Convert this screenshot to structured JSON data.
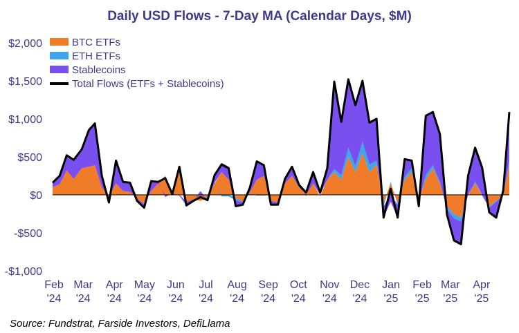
{
  "chart_data": {
    "type": "area",
    "title": "Daily USD Flows - 7-Day MA (Calendar Days, $M)",
    "source": "Source: Fundstrat, Farside Investors, DefiLlama",
    "ylim": [
      -1000,
      2000
    ],
    "y_ticks": [
      {
        "value": 2000,
        "label": "$2,000"
      },
      {
        "value": 1500,
        "label": "$1,500"
      },
      {
        "value": 1000,
        "label": "$1,000"
      },
      {
        "value": 500,
        "label": "$500"
      },
      {
        "value": 0,
        "label": "$0"
      },
      {
        "value": -500,
        "label": "-$500"
      },
      {
        "value": -1000,
        "label": "-$1,000"
      }
    ],
    "x_range": [
      "2024-02-01",
      "2025-04-30"
    ],
    "x_ticks": [
      {
        "date": "2024-02-01",
        "line1": "Feb",
        "line2": "'24"
      },
      {
        "date": "2024-03-01",
        "line1": "Mar",
        "line2": "'24"
      },
      {
        "date": "2024-04-01",
        "line1": "Apr",
        "line2": "'24"
      },
      {
        "date": "2024-05-01",
        "line1": "May",
        "line2": "'24"
      },
      {
        "date": "2024-06-01",
        "line1": "Jun",
        "line2": "'24"
      },
      {
        "date": "2024-07-01",
        "line1": "Jul",
        "line2": "'24"
      },
      {
        "date": "2024-08-01",
        "line1": "Aug",
        "line2": "'24"
      },
      {
        "date": "2024-09-01",
        "line1": "Sep",
        "line2": "'24"
      },
      {
        "date": "2024-10-01",
        "line1": "Oct",
        "line2": "'24"
      },
      {
        "date": "2024-11-01",
        "line1": "Nov",
        "line2": "'24"
      },
      {
        "date": "2024-12-01",
        "line1": "Dec",
        "line2": "'24"
      },
      {
        "date": "2025-01-01",
        "line1": "Jan",
        "line2": "'25"
      },
      {
        "date": "2025-02-01",
        "line1": "Feb",
        "line2": "'25"
      },
      {
        "date": "2025-03-01",
        "line1": "Mar",
        "line2": "'25"
      },
      {
        "date": "2025-04-01",
        "line1": "Apr",
        "line2": "'25"
      }
    ],
    "legend_position": "top-left",
    "grid": false,
    "x": [
      "2024-02-01",
      "2024-02-08",
      "2024-02-15",
      "2024-02-22",
      "2024-03-01",
      "2024-03-08",
      "2024-03-14",
      "2024-03-21",
      "2024-03-28",
      "2024-04-04",
      "2024-04-11",
      "2024-04-18",
      "2024-04-25",
      "2024-05-02",
      "2024-05-09",
      "2024-05-16",
      "2024-05-23",
      "2024-05-30",
      "2024-06-06",
      "2024-06-13",
      "2024-06-20",
      "2024-06-27",
      "2024-07-04",
      "2024-07-11",
      "2024-07-18",
      "2024-07-25",
      "2024-08-01",
      "2024-08-08",
      "2024-08-15",
      "2024-08-22",
      "2024-08-29",
      "2024-09-05",
      "2024-09-12",
      "2024-09-19",
      "2024-09-26",
      "2024-10-03",
      "2024-10-10",
      "2024-10-17",
      "2024-10-24",
      "2024-10-31",
      "2024-11-07",
      "2024-11-14",
      "2024-11-21",
      "2024-11-28",
      "2024-12-05",
      "2024-12-12",
      "2024-12-19",
      "2024-12-26",
      "2025-01-02",
      "2025-01-09",
      "2025-01-16",
      "2025-01-23",
      "2025-01-30",
      "2025-02-06",
      "2025-02-13",
      "2025-02-20",
      "2025-02-27",
      "2025-03-06",
      "2025-03-13",
      "2025-03-20",
      "2025-03-27",
      "2025-04-03",
      "2025-04-10",
      "2025-04-17",
      "2025-04-24",
      "2025-04-30"
    ],
    "series": [
      {
        "name": "BTC ETFs",
        "color": "#f07c2a",
        "values": [
          100,
          140,
          320,
          210,
          350,
          370,
          390,
          100,
          -30,
          150,
          50,
          40,
          -50,
          -120,
          50,
          150,
          250,
          -10,
          380,
          -90,
          -60,
          -80,
          -40,
          150,
          300,
          200,
          -40,
          -90,
          30,
          200,
          250,
          -80,
          -100,
          150,
          250,
          100,
          50,
          150,
          -20,
          200,
          300,
          200,
          500,
          300,
          550,
          300,
          400,
          -100,
          150,
          -100,
          200,
          300,
          -50,
          200,
          350,
          150,
          -150,
          -250,
          -300,
          0,
          150,
          0,
          -150,
          -80,
          0,
          400
        ]
      },
      {
        "name": "ETH ETFs",
        "color": "#3ea6ee",
        "values": [
          0,
          0,
          0,
          0,
          0,
          0,
          0,
          0,
          0,
          0,
          0,
          0,
          0,
          0,
          0,
          0,
          0,
          0,
          0,
          0,
          0,
          0,
          -10,
          10,
          -20,
          -20,
          -30,
          -10,
          0,
          -10,
          -10,
          0,
          0,
          0,
          0,
          0,
          0,
          0,
          0,
          0,
          40,
          60,
          120,
          80,
          150,
          100,
          50,
          -50,
          20,
          -30,
          40,
          50,
          -40,
          60,
          40,
          20,
          -40,
          -60,
          -50,
          0,
          20,
          -10,
          -20,
          -10,
          0,
          50
        ]
      },
      {
        "name": "Stablecoins",
        "color": "#7a4ff0",
        "values": [
          60,
          110,
          200,
          250,
          250,
          480,
          550,
          150,
          -70,
          300,
          120,
          120,
          -30,
          -50,
          130,
          20,
          -30,
          20,
          -10,
          -50,
          -20,
          50,
          -20,
          100,
          120,
          170,
          -80,
          -30,
          60,
          250,
          150,
          -50,
          -30,
          60,
          120,
          30,
          -20,
          150,
          50,
          150,
          1150,
          700,
          900,
          800,
          800,
          550,
          550,
          -150,
          -90,
          -170,
          230,
          100,
          -60,
          780,
          700,
          630,
          -70,
          -290,
          -300,
          250,
          450,
          370,
          -60,
          -210,
          60,
          640
        ]
      },
      {
        "name": "Total Flows (ETFs + Stablecoins)",
        "color": "#000000",
        "values": [
          160,
          250,
          520,
          460,
          600,
          850,
          940,
          250,
          -100,
          450,
          170,
          160,
          -80,
          -170,
          180,
          170,
          220,
          10,
          370,
          -140,
          -80,
          -30,
          -70,
          260,
          400,
          350,
          -150,
          -130,
          90,
          440,
          390,
          -130,
          -130,
          210,
          370,
          130,
          30,
          300,
          30,
          350,
          1490,
          960,
          1520,
          1180,
          1500,
          950,
          1000,
          -300,
          80,
          -300,
          470,
          450,
          -150,
          1040,
          1090,
          800,
          -260,
          -600,
          -650,
          250,
          620,
          360,
          -230,
          -300,
          60,
          1090
        ]
      }
    ]
  }
}
